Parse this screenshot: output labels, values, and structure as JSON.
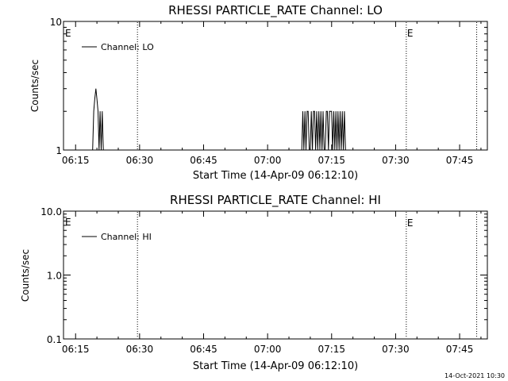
{
  "footer": "14-Oct-2021 10:30",
  "chart_data": [
    {
      "type": "line",
      "title": "RHESSI PARTICLE_RATE Channel: LO",
      "xlabel": "Start Time (14-Apr-09 06:12:10)",
      "ylabel": "Counts/sec",
      "yscale": "log",
      "xlim": [
        "06:12:10",
        "07:51:30"
      ],
      "ylim": [
        1,
        10
      ],
      "x_tick_labels": [
        "06:15",
        "06:30",
        "06:45",
        "07:00",
        "07:15",
        "07:30",
        "07:45"
      ],
      "y_tick_labels": [
        "1",
        "10"
      ],
      "legend": "top-left",
      "series": [
        {
          "name": "Channel: LO",
          "points": [
            [
              "06:19:00",
              1
            ],
            [
              "06:19:15",
              2
            ],
            [
              "06:19:30",
              2.5
            ],
            [
              "06:19:45",
              3
            ],
            [
              "06:20:00",
              2.5
            ],
            [
              "06:20:15",
              2
            ],
            [
              "06:20:30",
              1
            ],
            [
              "06:20:45",
              2
            ],
            [
              "06:21:00",
              1
            ],
            [
              "06:21:15",
              2
            ],
            [
              "06:21:30",
              1
            ],
            [
              "07:08:00",
              1
            ],
            [
              "07:08:15",
              2
            ],
            [
              "07:08:30",
              1
            ],
            [
              "07:08:45",
              2
            ],
            [
              "07:09:00",
              1
            ],
            [
              "07:09:15",
              2
            ],
            [
              "07:09:30",
              2
            ],
            [
              "07:09:45",
              1
            ],
            [
              "07:10:00",
              1
            ],
            [
              "07:10:15",
              2
            ],
            [
              "07:10:30",
              1
            ],
            [
              "07:10:45",
              2
            ],
            [
              "07:11:00",
              2
            ],
            [
              "07:11:15",
              1
            ],
            [
              "07:11:30",
              2
            ],
            [
              "07:11:45",
              1
            ],
            [
              "07:12:00",
              2
            ],
            [
              "07:12:15",
              1
            ],
            [
              "07:12:30",
              2
            ],
            [
              "07:12:45",
              1
            ],
            [
              "07:13:00",
              2
            ],
            [
              "07:13:15",
              1
            ],
            [
              "07:13:30",
              1
            ],
            [
              "07:13:45",
              2
            ],
            [
              "07:14:00",
              2
            ],
            [
              "07:14:15",
              1
            ],
            [
              "07:14:30",
              2
            ],
            [
              "07:14:45",
              2
            ],
            [
              "07:15:00",
              2
            ],
            [
              "07:15:15",
              1
            ],
            [
              "07:15:30",
              2
            ],
            [
              "07:15:45",
              1
            ],
            [
              "07:16:00",
              2
            ],
            [
              "07:16:15",
              1
            ],
            [
              "07:16:30",
              2
            ],
            [
              "07:16:45",
              1
            ],
            [
              "07:17:00",
              2
            ],
            [
              "07:17:15",
              1
            ],
            [
              "07:17:30",
              2
            ],
            [
              "07:17:45",
              1
            ],
            [
              "07:18:00",
              2
            ],
            [
              "07:18:15",
              1
            ]
          ]
        }
      ],
      "markers": [
        {
          "time": "06:29:30",
          "label": ""
        },
        {
          "time": "07:32:30",
          "label": "E"
        },
        {
          "time": "07:49:00",
          "label": ""
        }
      ],
      "edge_marker": "E"
    },
    {
      "type": "line",
      "title": "RHESSI PARTICLE_RATE Channel: HI",
      "xlabel": "Start Time (14-Apr-09 06:12:10)",
      "ylabel": "Counts/sec",
      "yscale": "log",
      "xlim": [
        "06:12:10",
        "07:51:30"
      ],
      "ylim": [
        0.1,
        10
      ],
      "x_tick_labels": [
        "06:15",
        "06:30",
        "06:45",
        "07:00",
        "07:15",
        "07:30",
        "07:45"
      ],
      "y_tick_labels": [
        "0.1",
        "1.0",
        "10.0"
      ],
      "legend": "top-left",
      "series": [
        {
          "name": "Channel: HI",
          "points": []
        }
      ],
      "markers": [
        {
          "time": "06:29:30",
          "label": ""
        },
        {
          "time": "07:32:30",
          "label": "E"
        },
        {
          "time": "07:49:00",
          "label": ""
        }
      ],
      "edge_marker": "E"
    }
  ]
}
